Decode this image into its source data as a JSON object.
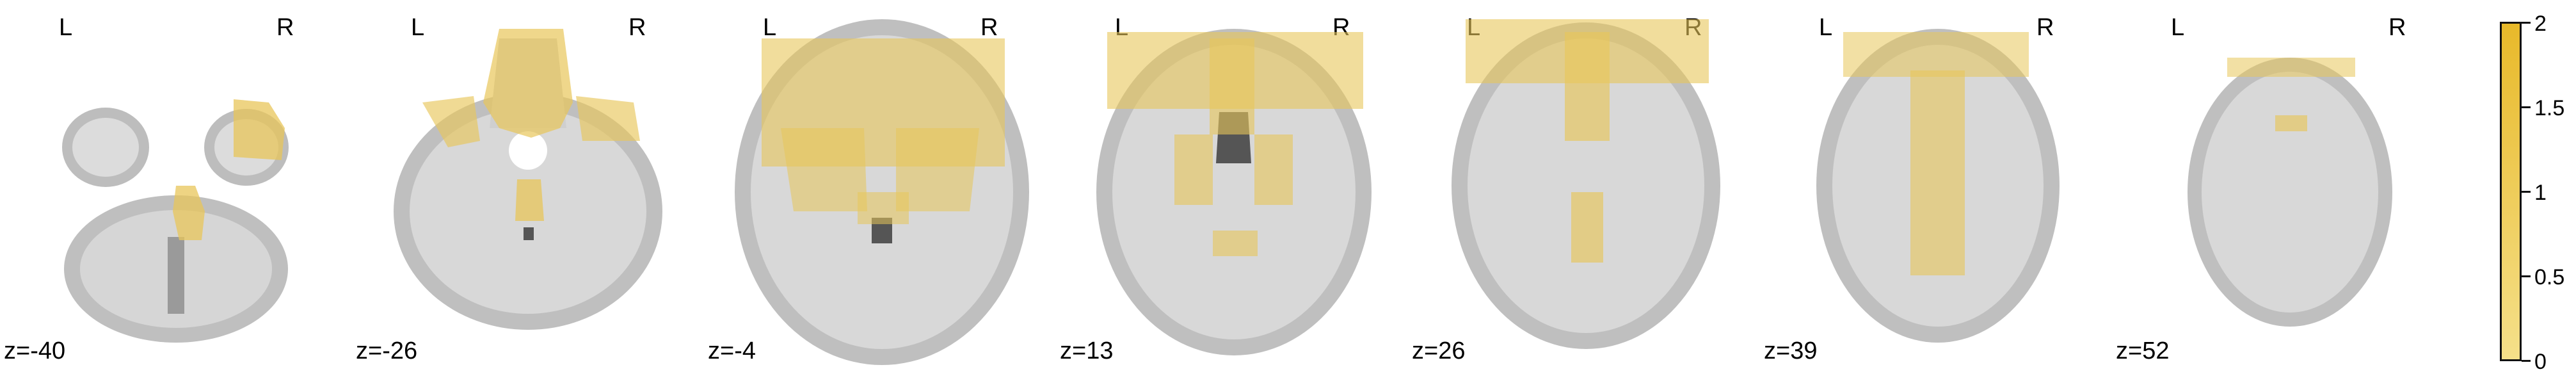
{
  "overlay_color": "#e8c65a",
  "slices": [
    {
      "left_label": "L",
      "right_label": "R",
      "z": "z=-40"
    },
    {
      "left_label": "L",
      "right_label": "R",
      "z": "z=-26"
    },
    {
      "left_label": "L",
      "right_label": "R",
      "z": "z=-4"
    },
    {
      "left_label": "L",
      "right_label": "R",
      "z": "z=13"
    },
    {
      "left_label": "L",
      "right_label": "R",
      "z": "z=26"
    },
    {
      "left_label": "L",
      "right_label": "R",
      "z": "z=39"
    },
    {
      "left_label": "L",
      "right_label": "R",
      "z": "z=52"
    }
  ],
  "colorbar": {
    "ticks": [
      "0",
      "0.5",
      "1",
      "1.5",
      "2"
    ],
    "range": [
      0,
      2
    ],
    "colors": [
      "#f5e08a",
      "#e8b92a"
    ]
  }
}
